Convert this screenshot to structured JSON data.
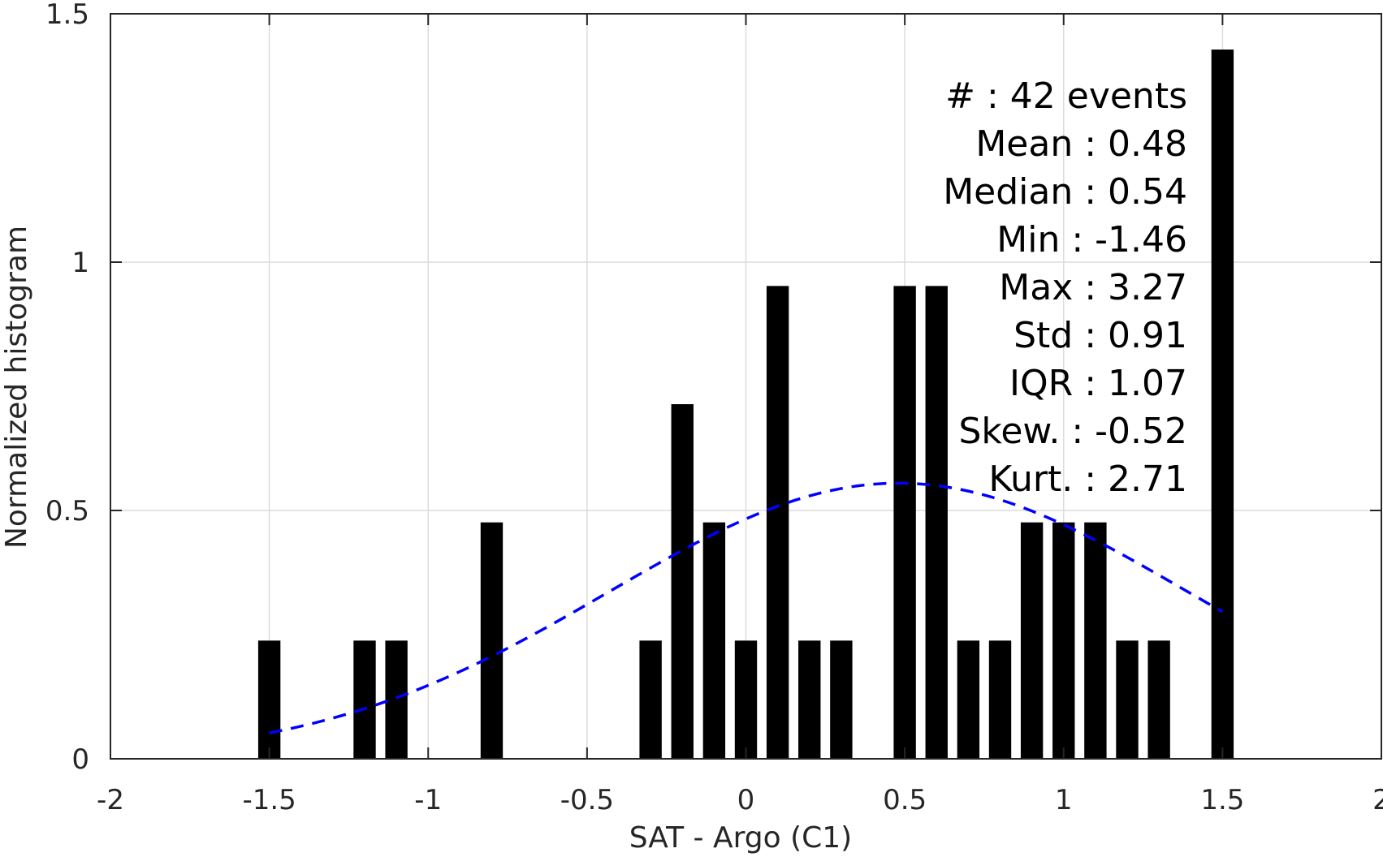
{
  "chart_data": {
    "type": "bar",
    "xlabel": "SAT - Argo (C1)",
    "ylabel": "Normalized histogram",
    "xlim": [
      -2,
      2
    ],
    "ylim": [
      0,
      1.5
    ],
    "xticks": [
      {
        "value": -2,
        "label": "-2"
      },
      {
        "value": -1.5,
        "label": "-1.5"
      },
      {
        "value": -1,
        "label": "-1"
      },
      {
        "value": -0.5,
        "label": "-0.5"
      },
      {
        "value": 0,
        "label": "0"
      },
      {
        "value": 0.5,
        "label": "0.5"
      },
      {
        "value": 1,
        "label": "1"
      },
      {
        "value": 1.5,
        "label": "1.5"
      },
      {
        "value": 2,
        "label": "2"
      }
    ],
    "yticks": [
      {
        "value": 0,
        "label": "0"
      },
      {
        "value": 0.5,
        "label": "0.5"
      },
      {
        "value": 1,
        "label": "1"
      },
      {
        "value": 1.5,
        "label": "1.5"
      }
    ],
    "grid": true,
    "bar_color": "#000000",
    "bin_width": 0.1,
    "bars": [
      {
        "x": -1.5,
        "y": 0.238
      },
      {
        "x": -1.2,
        "y": 0.238
      },
      {
        "x": -1.1,
        "y": 0.238
      },
      {
        "x": -0.8,
        "y": 0.476
      },
      {
        "x": -0.3,
        "y": 0.238
      },
      {
        "x": -0.2,
        "y": 0.714
      },
      {
        "x": -0.1,
        "y": 0.476
      },
      {
        "x": 0.0,
        "y": 0.238
      },
      {
        "x": 0.1,
        "y": 0.952
      },
      {
        "x": 0.2,
        "y": 0.238
      },
      {
        "x": 0.3,
        "y": 0.238
      },
      {
        "x": 0.5,
        "y": 0.952
      },
      {
        "x": 0.6,
        "y": 0.952
      },
      {
        "x": 0.7,
        "y": 0.238
      },
      {
        "x": 0.8,
        "y": 0.238
      },
      {
        "x": 0.9,
        "y": 0.476
      },
      {
        "x": 1.0,
        "y": 0.476
      },
      {
        "x": 1.1,
        "y": 0.476
      },
      {
        "x": 1.2,
        "y": 0.238
      },
      {
        "x": 1.3,
        "y": 0.238
      },
      {
        "x": 1.5,
        "y": 1.428
      }
    ],
    "fit_curve": {
      "style": "dashed",
      "color": "#0000ff",
      "x_range": [
        -1.5,
        1.5
      ],
      "mean": 0.48,
      "std": 0.91,
      "scale": 0.555
    },
    "annotation_lines": [
      "#  : 42 events",
      "Mean : 0.48",
      "Median : 0.54",
      "Min : -1.46",
      "Max : 3.27",
      "Std : 0.91",
      "IQR : 1.07",
      "Skew. : -0.52",
      "Kurt. : 2.71"
    ]
  }
}
